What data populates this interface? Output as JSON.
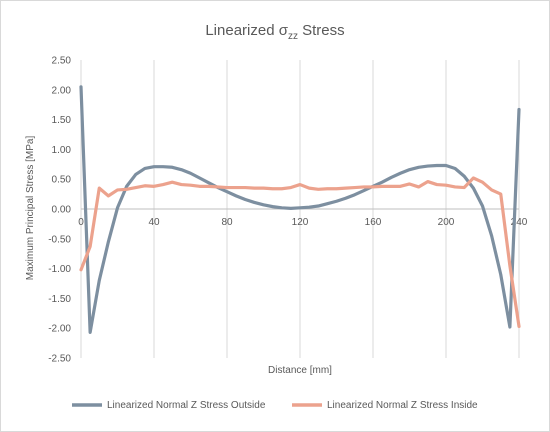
{
  "chart_data": {
    "type": "line",
    "title": {
      "prefix": "Linearized σ",
      "subscript": "zz",
      "suffix": " Stress"
    },
    "xlabel": "Distance [mm]",
    "ylabel": "Maximum Principal Stress [MPa]",
    "xlim": [
      0,
      240
    ],
    "ylim": [
      -2.5,
      2.5
    ],
    "xticks": [
      0,
      40,
      80,
      120,
      160,
      200,
      240
    ],
    "yticks": [
      2.5,
      2.0,
      1.5,
      1.0,
      0.5,
      0.0,
      -0.5,
      -1.0,
      -1.5,
      -2.0,
      -2.5
    ],
    "ytick_labels": [
      "2.50",
      "2.00",
      "1.50",
      "1.00",
      "0.50",
      "0.00",
      "-0.50",
      "-1.00",
      "-1.50",
      "-2.00",
      "-2.50"
    ],
    "grid": "vertical",
    "legend_position": "bottom",
    "series": [
      {
        "name": "Linearized Normal Z Stress Outside",
        "color": "#7d8fa0",
        "points": [
          [
            0,
            2.05
          ],
          [
            5,
            -2.07
          ],
          [
            10,
            -1.2
          ],
          [
            15,
            -0.55
          ],
          [
            20,
            0.02
          ],
          [
            25,
            0.38
          ],
          [
            30,
            0.58
          ],
          [
            35,
            0.68
          ],
          [
            40,
            0.71
          ],
          [
            45,
            0.71
          ],
          [
            50,
            0.7
          ],
          [
            55,
            0.66
          ],
          [
            60,
            0.6
          ],
          [
            65,
            0.52
          ],
          [
            70,
            0.44
          ],
          [
            75,
            0.36
          ],
          [
            80,
            0.29
          ],
          [
            85,
            0.22
          ],
          [
            90,
            0.16
          ],
          [
            95,
            0.11
          ],
          [
            100,
            0.07
          ],
          [
            105,
            0.04
          ],
          [
            110,
            0.02
          ],
          [
            115,
            0.01
          ],
          [
            120,
            0.02
          ],
          [
            125,
            0.03
          ],
          [
            130,
            0.05
          ],
          [
            135,
            0.09
          ],
          [
            140,
            0.13
          ],
          [
            145,
            0.18
          ],
          [
            150,
            0.24
          ],
          [
            155,
            0.31
          ],
          [
            160,
            0.38
          ],
          [
            165,
            0.45
          ],
          [
            170,
            0.53
          ],
          [
            175,
            0.6
          ],
          [
            180,
            0.66
          ],
          [
            185,
            0.7
          ],
          [
            190,
            0.72
          ],
          [
            195,
            0.73
          ],
          [
            200,
            0.73
          ],
          [
            205,
            0.68
          ],
          [
            210,
            0.55
          ],
          [
            215,
            0.35
          ],
          [
            220,
            0.05
          ],
          [
            225,
            -0.45
          ],
          [
            230,
            -1.1
          ],
          [
            235,
            -1.98
          ],
          [
            240,
            1.67
          ]
        ]
      },
      {
        "name": "Linearized Normal Z Stress Inside",
        "color": "#eca28d",
        "points": [
          [
            0,
            -1.02
          ],
          [
            5,
            -0.63
          ],
          [
            10,
            0.35
          ],
          [
            15,
            0.22
          ],
          [
            20,
            0.32
          ],
          [
            25,
            0.33
          ],
          [
            30,
            0.36
          ],
          [
            35,
            0.39
          ],
          [
            40,
            0.38
          ],
          [
            45,
            0.41
          ],
          [
            50,
            0.45
          ],
          [
            55,
            0.41
          ],
          [
            60,
            0.4
          ],
          [
            65,
            0.38
          ],
          [
            70,
            0.38
          ],
          [
            75,
            0.37
          ],
          [
            80,
            0.36
          ],
          [
            85,
            0.36
          ],
          [
            90,
            0.36
          ],
          [
            95,
            0.35
          ],
          [
            100,
            0.35
          ],
          [
            105,
            0.34
          ],
          [
            110,
            0.34
          ],
          [
            115,
            0.36
          ],
          [
            120,
            0.41
          ],
          [
            125,
            0.35
          ],
          [
            130,
            0.33
          ],
          [
            135,
            0.34
          ],
          [
            140,
            0.34
          ],
          [
            145,
            0.35
          ],
          [
            150,
            0.36
          ],
          [
            155,
            0.37
          ],
          [
            160,
            0.37
          ],
          [
            165,
            0.38
          ],
          [
            170,
            0.38
          ],
          [
            175,
            0.38
          ],
          [
            180,
            0.42
          ],
          [
            185,
            0.37
          ],
          [
            190,
            0.46
          ],
          [
            195,
            0.41
          ],
          [
            200,
            0.4
          ],
          [
            205,
            0.37
          ],
          [
            210,
            0.36
          ],
          [
            215,
            0.52
          ],
          [
            220,
            0.45
          ],
          [
            225,
            0.32
          ],
          [
            230,
            0.25
          ],
          [
            235,
            -0.95
          ],
          [
            240,
            -1.97
          ]
        ]
      }
    ]
  }
}
